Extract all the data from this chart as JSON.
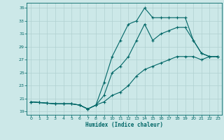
{
  "xlabel": "Humidex (Indice chaleur)",
  "bg_color": "#cce8e8",
  "grid_color": "#b0d0d0",
  "line_color": "#006666",
  "xlim": [
    -0.5,
    23.5
  ],
  "ylim": [
    18.5,
    35.8
  ],
  "xticks": [
    0,
    1,
    2,
    3,
    4,
    5,
    6,
    7,
    8,
    9,
    10,
    11,
    12,
    13,
    14,
    15,
    16,
    17,
    18,
    19,
    20,
    21,
    22,
    23
  ],
  "yticks": [
    19,
    21,
    23,
    25,
    27,
    29,
    31,
    33,
    35
  ],
  "line1_x": [
    0,
    1,
    2,
    3,
    4,
    5,
    6,
    7,
    8,
    9,
    10,
    11,
    12,
    13,
    14,
    15,
    16,
    17,
    18,
    19,
    20,
    21,
    22,
    23
  ],
  "line1_y": [
    20.5,
    20.4,
    20.3,
    20.2,
    20.2,
    20.2,
    20.0,
    19.4,
    20.0,
    23.5,
    27.5,
    30.0,
    32.5,
    33.0,
    35.0,
    33.5,
    33.5,
    33.5,
    33.5,
    33.5,
    30.0,
    28.0,
    27.5,
    27.5
  ],
  "line2_x": [
    0,
    1,
    2,
    3,
    4,
    5,
    6,
    7,
    8,
    9,
    10,
    11,
    12,
    13,
    14,
    15,
    16,
    17,
    18,
    19,
    20,
    21,
    22,
    23
  ],
  "line2_y": [
    20.5,
    20.4,
    20.3,
    20.2,
    20.2,
    20.2,
    20.0,
    19.4,
    20.0,
    21.5,
    25.0,
    26.0,
    27.5,
    30.0,
    32.5,
    30.0,
    31.0,
    31.5,
    32.0,
    32.0,
    30.0,
    28.0,
    27.5,
    27.5
  ],
  "line3_x": [
    0,
    1,
    2,
    3,
    4,
    5,
    6,
    7,
    8,
    9,
    10,
    11,
    12,
    13,
    14,
    15,
    16,
    17,
    18,
    19,
    20,
    21,
    22,
    23
  ],
  "line3_y": [
    20.5,
    20.4,
    20.3,
    20.2,
    20.2,
    20.2,
    20.0,
    19.4,
    20.0,
    20.5,
    21.5,
    22.0,
    23.0,
    24.5,
    25.5,
    26.0,
    26.5,
    27.0,
    27.5,
    27.5,
    27.5,
    27.0,
    27.5,
    27.5
  ]
}
